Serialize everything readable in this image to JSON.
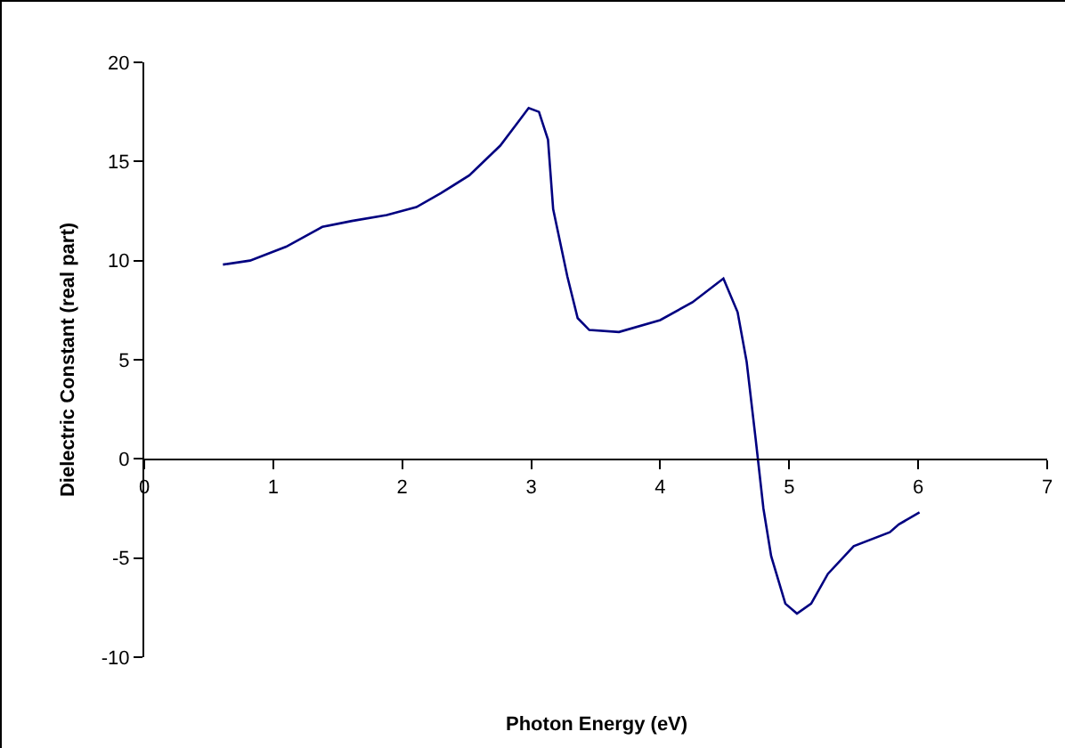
{
  "chart_data": {
    "type": "line",
    "xlabel": "Photon Energy (eV)",
    "ylabel": "Dielectric Constant (real part)",
    "x": [
      0.61,
      0.82,
      1.1,
      1.38,
      1.61,
      1.88,
      2.11,
      2.3,
      2.52,
      2.76,
      2.9,
      2.98,
      3.06,
      3.13,
      3.17,
      3.28,
      3.36,
      3.45,
      3.68,
      4.0,
      4.25,
      4.49,
      4.6,
      4.67,
      4.74,
      4.8,
      4.86,
      4.97,
      5.06,
      5.17,
      5.3,
      5.5,
      5.78,
      5.85,
      6.01
    ],
    "series": [
      {
        "color": "#000080",
        "values": [
          9.8,
          10.0,
          10.7,
          11.7,
          12.0,
          12.3,
          12.7,
          13.4,
          14.3,
          15.8,
          17.0,
          17.7,
          17.5,
          16.1,
          12.6,
          9.2,
          7.1,
          6.5,
          6.4,
          7.0,
          7.9,
          9.1,
          7.4,
          4.9,
          1.0,
          -2.5,
          -4.9,
          -7.3,
          -7.8,
          -7.3,
          -5.8,
          -4.4,
          -3.7,
          -3.3,
          -2.7
        ]
      }
    ],
    "xlim": [
      0,
      7
    ],
    "xticks": [
      0,
      1,
      2,
      3,
      4,
      5,
      6,
      7
    ],
    "ylim": [
      -10,
      20
    ],
    "yticks": [
      -10,
      -5,
      0,
      5,
      10,
      15,
      20
    ],
    "marker": "none",
    "line_style": "solid"
  }
}
